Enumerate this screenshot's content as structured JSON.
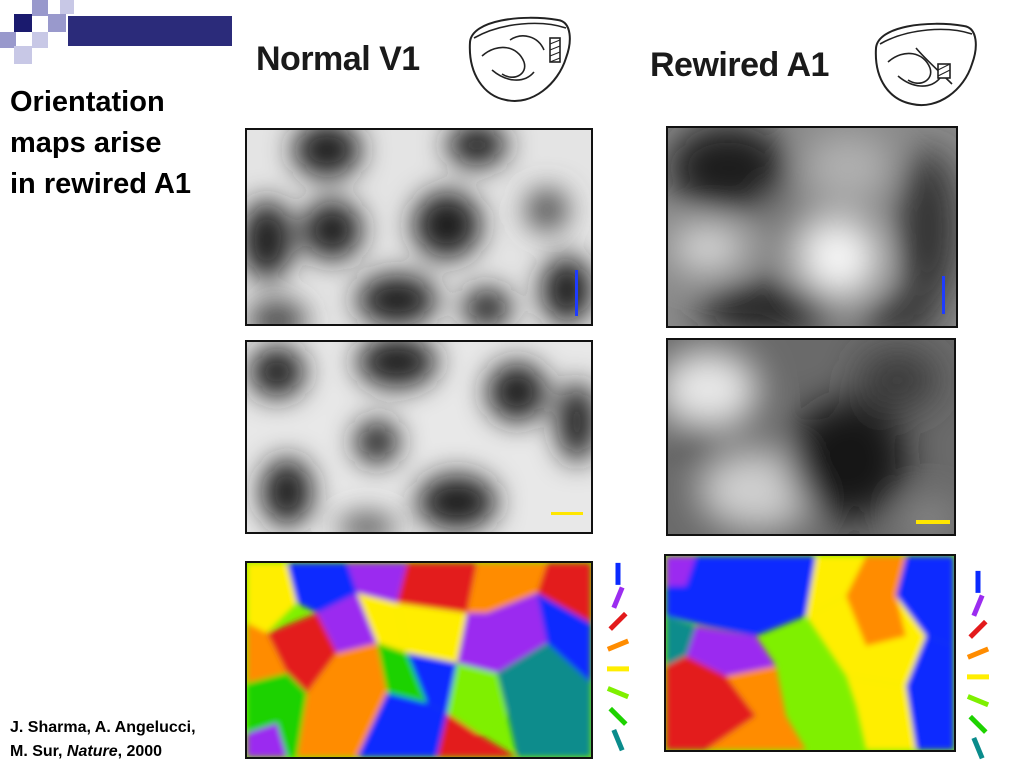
{
  "slide": {
    "title_lines": [
      "Orientation",
      "maps arise",
      "in rewired A1"
    ],
    "citation": {
      "line1": "J. Sharma, A. Angelucci,",
      "line2_authors": "M. Sur, ",
      "line2_journal": "Nature",
      "line2_year": ", 2000"
    }
  },
  "columns": {
    "left": {
      "heading": "Normal V1"
    },
    "right": {
      "heading": "Rewired A1"
    }
  },
  "colors": {
    "corner_dark": "#1a1a6e",
    "corner_light": "#9999cc",
    "scalebar_blue": "#1e3cff",
    "scalebar_yellow": "#ffe600",
    "orientation_key": [
      "#0a2aff",
      "#9b2cf0",
      "#e31a1c",
      "#ff8c00",
      "#ffee00",
      "#7ff000",
      "#1ed200",
      "#0a8c8c"
    ]
  }
}
